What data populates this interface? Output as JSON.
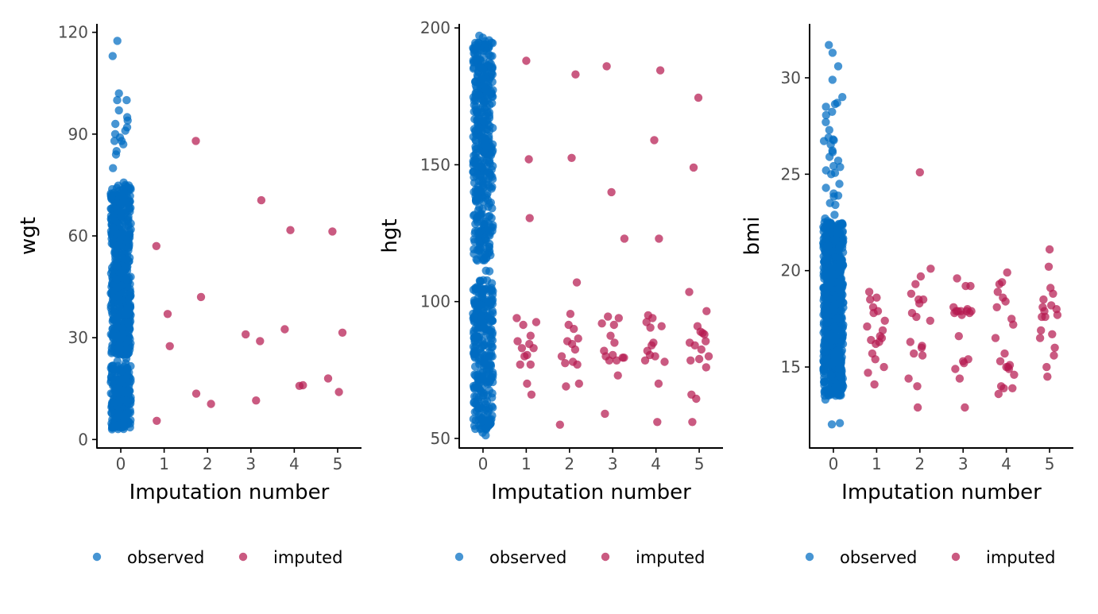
{
  "colors": {
    "observed": "#006CC2",
    "imputed": "#B61A51",
    "axis": "#000000",
    "tick_text": "#4D4D4D"
  },
  "legend": {
    "observed_label": "observed",
    "imputed_label": "imputed"
  },
  "chart_data": [
    {
      "type": "scatter",
      "variable": "wgt",
      "xlabel": "Imputation number",
      "ylabel": "wgt",
      "xlim": [
        -0.55,
        5.55
      ],
      "ylim": [
        -2.5,
        122.5
      ],
      "x_ticks": [
        0,
        1,
        2,
        3,
        4,
        5
      ],
      "y_ticks": [
        0,
        30,
        60,
        90,
        120
      ],
      "jitter": true,
      "observed_summary": {
        "n_points_approx": 745,
        "bulk_range": [
          3,
          82
        ],
        "dense_bands": [
          [
            3,
            22
          ],
          [
            25,
            75
          ]
        ],
        "extremes": [
          84,
          85,
          87,
          88,
          88,
          89,
          90,
          91,
          92,
          93,
          94,
          95,
          97,
          100,
          100,
          102,
          113,
          117.5
        ]
      },
      "series": [
        {
          "name": "imputed",
          "points": [
            [
              0.82,
              57.0
            ],
            [
              0.83,
              5.5
            ],
            [
              1.08,
              37.0
            ],
            [
              1.13,
              27.5
            ],
            [
              1.73,
              88.0
            ],
            [
              1.74,
              13.5
            ],
            [
              1.85,
              42.0
            ],
            [
              2.08,
              10.5
            ],
            [
              2.88,
              31.0
            ],
            [
              3.12,
              11.5
            ],
            [
              3.21,
              29.0
            ],
            [
              3.24,
              70.5
            ],
            [
              3.78,
              32.5
            ],
            [
              3.91,
              61.7
            ],
            [
              4.12,
              15.8
            ],
            [
              4.2,
              16.0
            ],
            [
              4.78,
              18.0
            ],
            [
              4.88,
              61.3
            ],
            [
              5.03,
              14.0
            ],
            [
              5.11,
              31.5
            ]
          ]
        }
      ]
    },
    {
      "type": "scatter",
      "variable": "hgt",
      "xlabel": "Imputation number",
      "ylabel": "hgt",
      "xlim": [
        -0.55,
        5.55
      ],
      "ylim": [
        46.5,
        201.5
      ],
      "x_ticks": [
        0,
        1,
        2,
        3,
        4,
        5
      ],
      "y_ticks": [
        50,
        100,
        150,
        200
      ],
      "jitter": true,
      "observed_summary": {
        "n_points_approx": 700,
        "bulk_range": [
          50,
          198
        ],
        "dense_bands": [
          [
            53,
            108
          ],
          [
            115,
            196
          ]
        ]
      },
      "series": [
        {
          "name": "imputed",
          "points": [
            [
              0.78,
              94
            ],
            [
              0.8,
              85.5
            ],
            [
              0.86,
              77
            ],
            [
              0.9,
              83
            ],
            [
              0.93,
              91.5
            ],
            [
              0.96,
              80
            ],
            [
              1.0,
              188
            ],
            [
              1.02,
              70
            ],
            [
              1.02,
              80.5
            ],
            [
              1.06,
              152
            ],
            [
              1.07,
              84.5
            ],
            [
              1.08,
              130.5
            ],
            [
              1.1,
              87.5
            ],
            [
              1.1,
              77
            ],
            [
              1.12,
              66
            ],
            [
              1.17,
              83
            ],
            [
              1.23,
              92.5
            ],
            [
              1.78,
              55
            ],
            [
              1.82,
              80
            ],
            [
              1.9,
              77.5
            ],
            [
              1.92,
              69
            ],
            [
              1.95,
              85.5
            ],
            [
              1.98,
              91.5
            ],
            [
              2.02,
              95.5
            ],
            [
              2.05,
              152.5
            ],
            [
              2.06,
              84.5
            ],
            [
              2.08,
              78
            ],
            [
              2.1,
              90
            ],
            [
              2.13,
              82.5
            ],
            [
              2.14,
              183
            ],
            [
              2.17,
              107
            ],
            [
              2.18,
              77
            ],
            [
              2.2,
              86.5
            ],
            [
              2.22,
              70
            ],
            [
              2.75,
              92
            ],
            [
              2.8,
              82
            ],
            [
              2.82,
              59
            ],
            [
              2.84,
              80
            ],
            [
              2.86,
              186
            ],
            [
              2.89,
              94.5
            ],
            [
              2.92,
              78.5
            ],
            [
              2.95,
              87.5
            ],
            [
              2.97,
              140
            ],
            [
              3.0,
              80.5
            ],
            [
              3.03,
              91.5
            ],
            [
              3.04,
              85
            ],
            [
              3.09,
              78.5
            ],
            [
              3.12,
              73
            ],
            [
              3.14,
              94
            ],
            [
              3.23,
              79.5
            ],
            [
              3.26,
              79.5
            ],
            [
              3.27,
              123
            ],
            [
              3.75,
              78.5
            ],
            [
              3.78,
              92.5
            ],
            [
              3.8,
              82
            ],
            [
              3.82,
              95
            ],
            [
              3.86,
              80.5
            ],
            [
              3.87,
              90.5
            ],
            [
              3.9,
              84
            ],
            [
              3.92,
              94
            ],
            [
              3.94,
              85
            ],
            [
              3.96,
              159
            ],
            [
              3.98,
              80
            ],
            [
              4.03,
              56
            ],
            [
              4.06,
              70
            ],
            [
              4.07,
              123
            ],
            [
              4.1,
              184.5
            ],
            [
              4.13,
              91
            ],
            [
              4.2,
              78
            ],
            [
              4.77,
              103.5
            ],
            [
              4.78,
              85
            ],
            [
              4.8,
              78.5
            ],
            [
              4.82,
              66
            ],
            [
              4.84,
              56
            ],
            [
              4.87,
              149
            ],
            [
              4.9,
              84
            ],
            [
              4.93,
              64.5
            ],
            [
              4.96,
              91
            ],
            [
              4.98,
              174.5
            ],
            [
              5.0,
              79
            ],
            [
              5.03,
              89
            ],
            [
              5.05,
              82.5
            ],
            [
              5.08,
              88.5
            ],
            [
              5.12,
              88
            ],
            [
              5.15,
              85.5
            ],
            [
              5.16,
              76
            ],
            [
              5.17,
              96.5
            ],
            [
              5.22,
              80
            ]
          ]
        }
      ]
    },
    {
      "type": "scatter",
      "variable": "bmi",
      "xlabel": "Imputation number",
      "ylabel": "bmi",
      "xlim": [
        -0.55,
        5.55
      ],
      "ylim": [
        10.8,
        32.8
      ],
      "x_ticks": [
        0,
        1,
        2,
        3,
        4,
        5
      ],
      "y_ticks": [
        15,
        20,
        25,
        30
      ],
      "jitter": true,
      "observed_summary": {
        "n_points_approx": 700,
        "bulk_range": [
          12,
          29
        ],
        "dense_bands": [
          [
            13.5,
            22.5
          ]
        ],
        "extremes": [
          23.5,
          24.0,
          24.5,
          25.0,
          25.2,
          25.7,
          25.9,
          26.8,
          26.9,
          27.7,
          28.5,
          28.7,
          29.0,
          29.9,
          30.6,
          31.3,
          31.7
        ]
      },
      "series": [
        {
          "name": "imputed",
          "points": [
            [
              0.78,
              17.1
            ],
            [
              0.8,
              14.7
            ],
            [
              0.83,
              18.9
            ],
            [
              0.85,
              18.5
            ],
            [
              0.87,
              16.4
            ],
            [
              0.9,
              15.7
            ],
            [
              0.92,
              18.1
            ],
            [
              0.93,
              17.8
            ],
            [
              0.95,
              14.1
            ],
            [
              0.97,
              15.4
            ],
            [
              0.98,
              16.2
            ],
            [
              1.0,
              18.6
            ],
            [
              1.03,
              17.9
            ],
            [
              1.06,
              16.3
            ],
            [
              1.08,
              16.6
            ],
            [
              1.12,
              16.5
            ],
            [
              1.14,
              16.9
            ],
            [
              1.17,
              15.0
            ],
            [
              1.19,
              17.4
            ],
            [
              1.74,
              14.4
            ],
            [
              1.78,
              16.3
            ],
            [
              1.8,
              18.8
            ],
            [
              1.82,
              17.8
            ],
            [
              1.86,
              15.7
            ],
            [
              1.9,
              19.3
            ],
            [
              1.92,
              17.6
            ],
            [
              1.94,
              14.0
            ],
            [
              1.95,
              12.9
            ],
            [
              1.97,
              18.5
            ],
            [
              1.99,
              18.3
            ],
            [
              2.0,
              25.1
            ],
            [
              2.02,
              19.7
            ],
            [
              2.04,
              16.0
            ],
            [
              2.05,
              16.1
            ],
            [
              2.06,
              15.6
            ],
            [
              2.08,
              18.5
            ],
            [
              2.24,
              17.4
            ],
            [
              2.25,
              20.1
            ],
            [
              2.78,
              18.1
            ],
            [
              2.8,
              17.8
            ],
            [
              2.82,
              14.9
            ],
            [
              2.84,
              17.9
            ],
            [
              2.86,
              19.6
            ],
            [
              2.88,
              17.9
            ],
            [
              2.9,
              16.6
            ],
            [
              2.92,
              14.4
            ],
            [
              2.95,
              17.9
            ],
            [
              2.97,
              17.7
            ],
            [
              3.0,
              15.3
            ],
            [
              3.02,
              15.2
            ],
            [
              3.04,
              12.9
            ],
            [
              3.06,
              19.2
            ],
            [
              3.08,
              17.9
            ],
            [
              3.1,
              18.0
            ],
            [
              3.12,
              15.4
            ],
            [
              3.15,
              17.8
            ],
            [
              3.17,
              19.2
            ],
            [
              3.19,
              17.9
            ],
            [
              3.75,
              16.5
            ],
            [
              3.78,
              18.1
            ],
            [
              3.8,
              18.9
            ],
            [
              3.82,
              13.6
            ],
            [
              3.84,
              19.3
            ],
            [
              3.86,
              15.3
            ],
            [
              3.88,
              14.0
            ],
            [
              3.9,
              19.4
            ],
            [
              3.92,
              18.6
            ],
            [
              3.94,
              13.9
            ],
            [
              3.96,
              15.7
            ],
            [
              3.98,
              18.4
            ],
            [
              4.0,
              15.0
            ],
            [
              4.02,
              19.9
            ],
            [
              4.04,
              15.0
            ],
            [
              4.06,
              14.9
            ],
            [
              4.08,
              15.1
            ],
            [
              4.12,
              17.5
            ],
            [
              4.14,
              13.9
            ],
            [
              4.16,
              17.2
            ],
            [
              4.18,
              14.6
            ],
            [
              4.78,
              16.5
            ],
            [
              4.8,
              16.9
            ],
            [
              4.82,
              17.6
            ],
            [
              4.84,
              18.1
            ],
            [
              4.86,
              18.5
            ],
            [
              4.88,
              17.9
            ],
            [
              4.9,
              17.6
            ],
            [
              4.93,
              15.0
            ],
            [
              4.95,
              14.5
            ],
            [
              4.98,
              20.2
            ],
            [
              5.0,
              21.1
            ],
            [
              5.02,
              19.1
            ],
            [
              5.04,
              18.2
            ],
            [
              5.06,
              16.7
            ],
            [
              5.08,
              18.8
            ],
            [
              5.1,
              15.6
            ],
            [
              5.12,
              16.0
            ],
            [
              5.16,
              18.0
            ],
            [
              5.18,
              17.7
            ]
          ]
        }
      ]
    }
  ]
}
